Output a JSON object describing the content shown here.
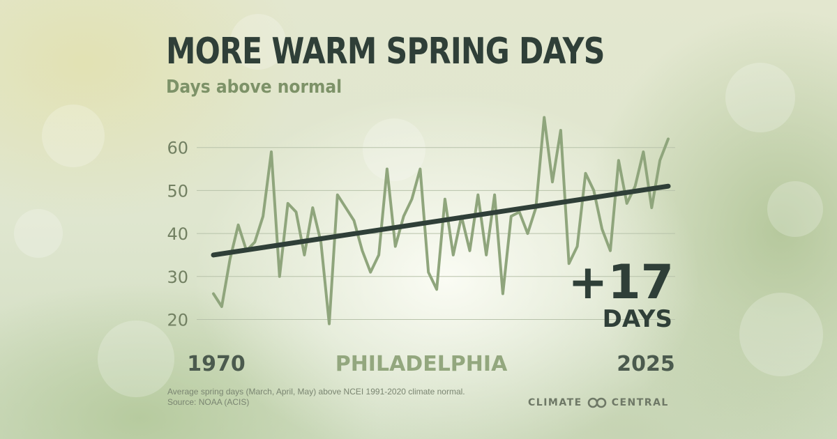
{
  "header": {
    "title": "MORE WARM SPRING DAYS",
    "subtitle": "Days above normal"
  },
  "footer": {
    "note_line1": "Average spring days (March, April, May) above NCEI 1991-2020 climate normal.",
    "note_line2": "Source: NOAA (ACIS)",
    "logo_left": "CLIMATE",
    "logo_right": "CENTRAL"
  },
  "colors": {
    "series": "#8fa57c",
    "trend": "#2f3f38",
    "title": "#2f3f38",
    "subtitle": "#7d9268"
  },
  "chart_data": {
    "type": "line",
    "title": "MORE WARM SPRING DAYS",
    "subtitle": "Days above normal",
    "location": "PHILADELPHIA",
    "x_start_label": "1970",
    "x_end_label": "2025",
    "x": [
      1970,
      1971,
      1972,
      1973,
      1974,
      1975,
      1976,
      1977,
      1978,
      1979,
      1980,
      1981,
      1982,
      1983,
      1984,
      1985,
      1986,
      1987,
      1988,
      1989,
      1990,
      1991,
      1992,
      1993,
      1994,
      1995,
      1996,
      1997,
      1998,
      1999,
      2000,
      2001,
      2002,
      2003,
      2004,
      2005,
      2006,
      2007,
      2008,
      2009,
      2010,
      2011,
      2012,
      2013,
      2014,
      2015,
      2016,
      2017,
      2018,
      2019,
      2020,
      2021,
      2022,
      2023,
      2024,
      2025
    ],
    "series": [
      {
        "values": [
          26,
          23,
          34,
          42,
          36,
          38,
          44,
          59,
          30,
          47,
          45,
          35,
          46,
          38,
          19,
          49,
          46,
          43,
          36,
          31,
          35,
          55,
          37,
          44,
          48,
          55,
          31,
          27,
          48,
          35,
          44,
          36,
          49,
          35,
          49,
          26,
          44,
          45,
          40,
          46,
          67,
          52,
          64,
          33,
          37,
          54,
          50,
          41,
          36,
          57,
          47,
          51,
          59,
          46,
          57,
          62
        ]
      }
    ],
    "trend": {
      "start": [
        1970,
        35
      ],
      "end": [
        2025,
        51
      ]
    },
    "y_ticks": [
      20,
      30,
      40,
      50,
      60
    ],
    "ylim": [
      17,
      70
    ],
    "grid": true,
    "callout": {
      "value": "+17",
      "unit": "DAYS"
    }
  }
}
